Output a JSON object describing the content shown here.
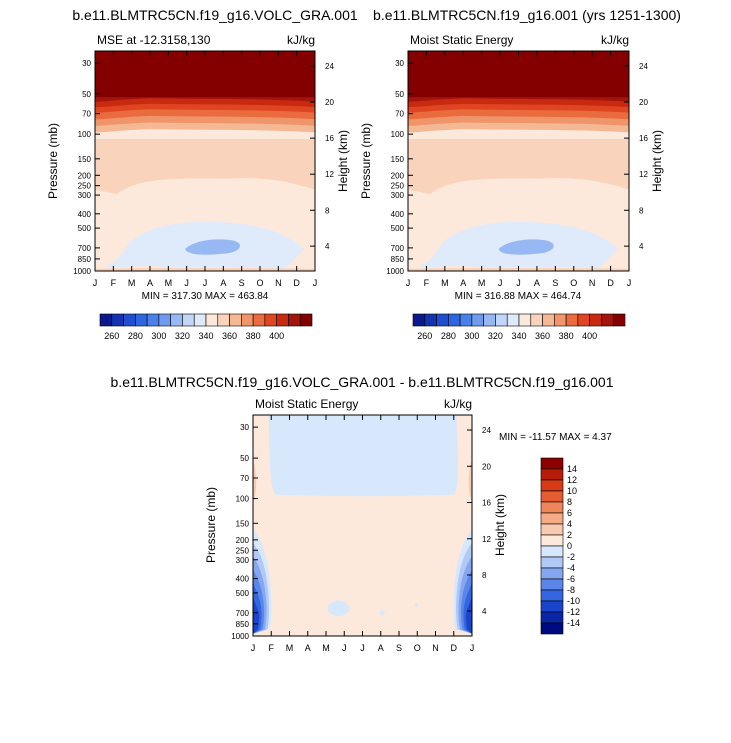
{
  "panels": [
    {
      "title": "b.e11.BLMTRC5CN.f19_g16.VOLC_GRA.001",
      "left_label": "MSE at -12.3158,130",
      "right_label": "kJ/kg",
      "ylabel": "Pressure (mb)",
      "ylabel_right": "Height (km)",
      "minmax": "MIN = 317.30 MAX = 463.84"
    },
    {
      "title": "b.e11.BLMTRC5CN.f19_g16.001 (yrs 1251-1300)",
      "left_label": "Moist Static Energy",
      "right_label": "kJ/kg",
      "ylabel": "Pressure (mb)",
      "ylabel_right": "Height (km)",
      "minmax": "MIN = 316.88 MAX = 464.74"
    },
    {
      "title": "b.e11.BLMTRC5CN.f19_g16.VOLC_GRA.001 - b.e11.BLMTRC5CN.f19_g16.001",
      "left_label": "Moist Static Energy",
      "right_label": "kJ/kg",
      "ylabel": "Pressure (mb)",
      "ylabel_right": "Height (km)",
      "minmax": "MIN = -11.57 MAX =   4.37"
    }
  ],
  "chart_data": [
    {
      "type": "heatmap",
      "title": "b.e11.BLMTRC5CN.f19_g16.VOLC_GRA.001",
      "x_ticks": [
        "J",
        "F",
        "M",
        "A",
        "M",
        "J",
        "J",
        "A",
        "S",
        "O",
        "N",
        "D",
        "J"
      ],
      "y_ticks": [
        "30",
        "50",
        "70",
        "100",
        "150",
        "200",
        "250",
        "300",
        "400",
        "500",
        "700",
        "850",
        "1000"
      ],
      "y2_ticks": [
        "24",
        "20",
        "16",
        "12",
        "8",
        "4"
      ],
      "ylim": [
        1000,
        20
      ],
      "y_scale": "log",
      "colorbar_labels": [
        "260",
        "280",
        "300",
        "320",
        "340",
        "360",
        "380",
        "400"
      ],
      "levels_min": 250,
      "levels_max": 410,
      "level_step": 10
    },
    {
      "type": "heatmap",
      "title": "b.e11.BLMTRC5CN.f19_g16.001 (yrs 1251-1300)",
      "x_ticks": [
        "J",
        "F",
        "M",
        "A",
        "M",
        "J",
        "J",
        "A",
        "S",
        "O",
        "N",
        "D",
        "J"
      ],
      "y_ticks": [
        "30",
        "50",
        "70",
        "100",
        "150",
        "200",
        "250",
        "300",
        "400",
        "500",
        "700",
        "850",
        "1000"
      ],
      "y2_ticks": [
        "24",
        "20",
        "16",
        "12",
        "8",
        "4"
      ],
      "ylim": [
        1000,
        20
      ],
      "y_scale": "log",
      "colorbar_labels": [
        "260",
        "280",
        "300",
        "320",
        "340",
        "360",
        "380",
        "400"
      ],
      "levels_min": 250,
      "levels_max": 410,
      "level_step": 10
    },
    {
      "type": "heatmap",
      "title": "b.e11.BLMTRC5CN.f19_g16.VOLC_GRA.001 - b.e11.BLMTRC5CN.f19_g16.001",
      "x_ticks": [
        "J",
        "F",
        "M",
        "A",
        "M",
        "J",
        "J",
        "A",
        "S",
        "O",
        "N",
        "D",
        "J"
      ],
      "y_ticks": [
        "30",
        "50",
        "70",
        "100",
        "150",
        "200",
        "250",
        "300",
        "400",
        "500",
        "700",
        "850",
        "1000"
      ],
      "y2_ticks": [
        "24",
        "20",
        "16",
        "12",
        "8",
        "4"
      ],
      "ylim": [
        1000,
        20
      ],
      "y_scale": "log",
      "colorbar_labels": [
        "14",
        "12",
        "10",
        "8",
        "6",
        "4",
        "2",
        "0",
        "-2",
        "-4",
        "-6",
        "-8",
        "-10",
        "-12",
        "-14"
      ]
    }
  ],
  "colors": {
    "abs_palette": [
      "#0a1a8c",
      "#1433b0",
      "#1f4fd0",
      "#2f66e0",
      "#4a80ea",
      "#6f9bef",
      "#98b8f3",
      "#c3d6f7",
      "#dfeafb",
      "#fde9dc",
      "#f9d3bc",
      "#f5b895",
      "#f0946a",
      "#ea6c3e",
      "#df4520",
      "#c72a10",
      "#a3150a",
      "#840000"
    ],
    "diff_palette": [
      "#000a80",
      "#0a25a6",
      "#1a44cc",
      "#3366e0",
      "#5a86ea",
      "#85a6f0",
      "#b1c9f6",
      "#d8e8fc",
      "#fde9dc",
      "#f8cbb0",
      "#f4ab86",
      "#ef855b",
      "#e65c32",
      "#d63a16",
      "#b61c08",
      "#8c0000"
    ]
  }
}
